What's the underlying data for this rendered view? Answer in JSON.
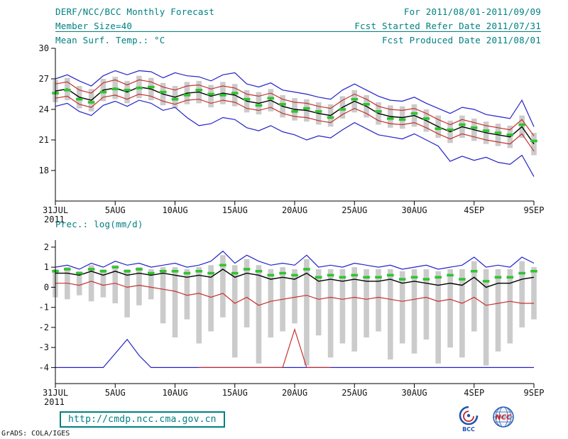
{
  "header": {
    "title": "DERF/NCC/BCC Monthly Forecast",
    "member_size": "Member Size=40",
    "temp_title": "Mean Surf. Temp.: °C",
    "for_range": "For 2011/08/01-2011/09/09",
    "refer_date": "Fcst Started Refer Date 2011/07/31",
    "produced_date": "Fcst Produced Date 2011/08/01"
  },
  "footer": {
    "url": "http://cmdp.ncc.cma.gov.cn",
    "credit": "GrADS: COLA/IGES",
    "bcc_label": "BCC",
    "ncc_label": "NCC"
  },
  "colors": {
    "teal": "#008080",
    "blue": "#2323c8",
    "red": "#c83030",
    "green": "#2fc42f",
    "gray": "#cbcbcb",
    "black": "#000000",
    "logo_blue": "#1d53b0",
    "logo_red": "#c22626"
  },
  "chart_data": [
    {
      "type": "line",
      "variant": "ensemble-spread-plume",
      "title": "Mean Surf. Temp.: °C",
      "xlabel": "",
      "ylabel": "°C",
      "ylim": [
        15,
        30
      ],
      "yticks": [
        18,
        21,
        24,
        27,
        30
      ],
      "x_tick_days": [
        0,
        5,
        10,
        15,
        20,
        25,
        30,
        35,
        40
      ],
      "x_tick_labels": [
        "31JUL",
        "5AUG",
        "10AUG",
        "15AUG",
        "20AUG",
        "25AUG",
        "30AUG",
        "4SEP",
        "9SEP"
      ],
      "x_sub_label": "2011",
      "legend": "off",
      "grid": "off",
      "series": [
        {
          "name": "ensemble-max",
          "color": "blue",
          "width": 1.2,
          "values": [
            27.0,
            27.4,
            26.8,
            26.3,
            27.3,
            27.8,
            27.4,
            27.8,
            27.7,
            27.1,
            27.6,
            27.3,
            27.2,
            26.8,
            27.4,
            27.6,
            26.5,
            26.2,
            26.6,
            25.9,
            25.7,
            25.5,
            25.2,
            25.0,
            25.9,
            26.5,
            25.9,
            25.3,
            24.9,
            24.8,
            25.2,
            24.6,
            24.1,
            23.6,
            24.2,
            24.0,
            23.5,
            23.3,
            23.1,
            24.9,
            22.3
          ]
        },
        {
          "name": "ensemble-min",
          "color": "blue",
          "width": 1.2,
          "values": [
            24.3,
            24.6,
            23.8,
            23.4,
            24.4,
            24.8,
            24.3,
            24.9,
            24.6,
            23.9,
            24.2,
            23.2,
            22.4,
            22.6,
            23.2,
            23.0,
            22.2,
            21.9,
            22.4,
            21.8,
            21.5,
            21.0,
            21.4,
            21.2,
            22.0,
            22.7,
            22.1,
            21.5,
            21.3,
            21.1,
            21.6,
            21.0,
            20.4,
            18.9,
            19.4,
            19.0,
            19.3,
            18.8,
            18.6,
            19.5,
            17.4
          ]
        },
        {
          "name": "upper-spread",
          "color": "red",
          "width": 1.2,
          "values": [
            26.5,
            26.7,
            25.9,
            25.6,
            26.6,
            26.9,
            26.4,
            26.9,
            26.7,
            26.2,
            25.9,
            26.3,
            26.4,
            26.0,
            26.3,
            26.1,
            25.5,
            25.3,
            25.6,
            25.0,
            24.7,
            24.6,
            24.3,
            24.1,
            24.9,
            25.5,
            25.0,
            24.3,
            24.0,
            23.9,
            24.1,
            23.6,
            23.0,
            22.5,
            23.0,
            22.7,
            22.4,
            22.2,
            22.0,
            23.0,
            21.4
          ]
        },
        {
          "name": "lower-spread",
          "color": "red",
          "width": 1.2,
          "values": [
            25.1,
            25.3,
            24.5,
            24.2,
            25.2,
            25.4,
            25.0,
            25.5,
            25.3,
            24.8,
            24.5,
            24.9,
            25.0,
            24.6,
            24.9,
            24.7,
            24.1,
            23.9,
            24.2,
            23.6,
            23.3,
            23.2,
            22.9,
            22.7,
            23.5,
            24.1,
            23.6,
            22.9,
            22.6,
            22.5,
            22.7,
            22.2,
            21.6,
            21.1,
            21.6,
            21.3,
            21.0,
            20.8,
            20.6,
            21.6,
            19.9
          ]
        },
        {
          "name": "ensemble-mean",
          "color": "black",
          "width": 1.4,
          "values": [
            25.8,
            26.0,
            25.2,
            24.9,
            25.9,
            26.1,
            25.7,
            26.2,
            26.0,
            25.5,
            25.2,
            25.6,
            25.7,
            25.3,
            25.6,
            25.4,
            24.8,
            24.6,
            24.9,
            24.3,
            24.0,
            23.9,
            23.6,
            23.4,
            24.2,
            24.8,
            24.3,
            23.6,
            23.3,
            23.2,
            23.4,
            22.9,
            22.3,
            21.8,
            22.3,
            22.0,
            21.7,
            21.5,
            21.3,
            22.3,
            20.6
          ]
        }
      ],
      "green_dashes": [
        25.6,
        25.9,
        25.0,
        24.7,
        25.7,
        26.0,
        25.9,
        26.1,
        26.2,
        25.7,
        25.0,
        25.4,
        25.9,
        25.5,
        25.4,
        25.6,
        25.0,
        24.4,
        25.1,
        24.5,
        23.8,
        24.1,
        23.8,
        23.2,
        24.0,
        25.0,
        24.5,
        23.8,
        23.1,
        23.0,
        23.6,
        23.1,
        22.1,
        22.0,
        22.5,
        22.2,
        21.9,
        21.7,
        21.5,
        22.5,
        20.9
      ],
      "bars": {
        "top": [
          26.9,
          27.1,
          26.3,
          26.0,
          27.0,
          27.2,
          26.8,
          27.3,
          27.1,
          26.6,
          26.3,
          26.7,
          26.8,
          26.4,
          26.7,
          26.5,
          25.9,
          25.7,
          26.0,
          25.4,
          25.1,
          25.0,
          24.7,
          24.5,
          25.3,
          25.9,
          25.4,
          24.7,
          24.4,
          24.3,
          24.5,
          24.0,
          23.4,
          22.9,
          23.4,
          23.1,
          22.8,
          22.6,
          22.4,
          23.4,
          21.7
        ],
        "bottom": [
          24.7,
          24.9,
          24.1,
          23.8,
          24.8,
          25.0,
          24.6,
          25.1,
          24.9,
          24.4,
          24.1,
          24.5,
          24.6,
          24.2,
          24.5,
          24.3,
          23.7,
          23.5,
          23.8,
          23.2,
          22.9,
          22.8,
          22.5,
          22.3,
          23.1,
          23.7,
          23.2,
          22.5,
          22.2,
          22.1,
          22.3,
          21.8,
          21.2,
          20.7,
          21.2,
          20.9,
          20.6,
          20.4,
          20.2,
          21.2,
          19.5
        ]
      }
    },
    {
      "type": "line",
      "variant": "ensemble-spread-plume",
      "title": "Prec.: log(mm/d)",
      "xlabel": "",
      "ylabel": "log(mm/d)",
      "ylim": [
        -4.8,
        2.35
      ],
      "yticks": [
        -4,
        -3,
        -2,
        -1,
        0,
        1,
        2
      ],
      "x_tick_days": [
        0,
        5,
        10,
        15,
        20,
        25,
        30,
        35,
        40
      ],
      "x_tick_labels": [
        "31JUL",
        "5AUG",
        "10AUG",
        "15AUG",
        "20AUG",
        "25AUG",
        "30AUG",
        "4SEP",
        "9SEP"
      ],
      "x_sub_label": "2011",
      "legend": "off",
      "grid": "off",
      "series": [
        {
          "name": "ensemble-max",
          "color": "blue",
          "width": 1.2,
          "values": [
            1.0,
            1.1,
            0.9,
            1.2,
            1.0,
            1.3,
            1.1,
            1.2,
            1.0,
            1.1,
            1.2,
            1.0,
            1.1,
            1.3,
            1.8,
            1.2,
            1.6,
            1.3,
            1.1,
            1.2,
            1.1,
            1.6,
            1.0,
            1.1,
            1.0,
            1.2,
            1.1,
            1.0,
            1.1,
            0.9,
            1.0,
            1.1,
            0.9,
            1.0,
            1.1,
            1.5,
            1.0,
            1.1,
            1.0,
            1.5,
            1.2
          ]
        },
        {
          "name": "ensemble-min",
          "color": "blue",
          "width": 1.2,
          "values": [
            -4,
            -4,
            -4,
            -4,
            -4,
            -3.3,
            -2.6,
            -3.4,
            -4,
            -4,
            -4,
            -4,
            -4,
            -4,
            -4,
            -4,
            -4,
            -4,
            -4,
            -4,
            -4,
            -4,
            -4,
            -4,
            -4,
            -4,
            -4,
            -4,
            -4,
            -4,
            -4,
            -4,
            -4,
            -4,
            -4,
            -4,
            -4,
            -4,
            -4,
            -4,
            -4
          ]
        },
        {
          "name": "lower-spread",
          "color": "red",
          "width": 1.2,
          "values": [
            0.2,
            0.2,
            0.1,
            0.3,
            0.1,
            0.2,
            0.0,
            0.1,
            0.0,
            -0.1,
            -0.2,
            -0.4,
            -0.3,
            -0.5,
            -0.3,
            -0.8,
            -0.5,
            -0.9,
            -0.7,
            -0.6,
            -0.5,
            -0.4,
            -0.6,
            -0.5,
            -0.6,
            -0.5,
            -0.6,
            -0.5,
            -0.6,
            -0.7,
            -0.6,
            -0.5,
            -0.7,
            -0.6,
            -0.8,
            -0.5,
            -0.9,
            -0.8,
            -0.7,
            -0.8,
            -0.8
          ]
        },
        {
          "name": "lower-spread-floor",
          "color": "red",
          "width": 1.2,
          "values": [
            null,
            null,
            null,
            null,
            null,
            null,
            null,
            null,
            null,
            null,
            null,
            null,
            -4,
            -4,
            -4,
            -4,
            -4,
            -4,
            -4,
            -4,
            -2.1,
            -4,
            -4,
            -4,
            null,
            null,
            null,
            null,
            null,
            null,
            null,
            null,
            null,
            null,
            null,
            null,
            null,
            null,
            null,
            null,
            null
          ]
        },
        {
          "name": "ensemble-mean",
          "color": "black",
          "width": 1.4,
          "values": [
            0.7,
            0.7,
            0.6,
            0.8,
            0.6,
            0.8,
            0.6,
            0.7,
            0.6,
            0.7,
            0.6,
            0.5,
            0.6,
            0.5,
            0.9,
            0.5,
            0.7,
            0.6,
            0.4,
            0.5,
            0.4,
            0.7,
            0.3,
            0.4,
            0.3,
            0.4,
            0.3,
            0.3,
            0.4,
            0.2,
            0.3,
            0.2,
            0.1,
            0.2,
            0.1,
            0.5,
            0.0,
            0.2,
            0.2,
            0.4,
            0.5
          ]
        }
      ],
      "green_dashes": [
        0.8,
        0.9,
        0.7,
        0.9,
        0.8,
        1.0,
        0.8,
        0.9,
        0.7,
        0.8,
        0.8,
        0.7,
        0.8,
        0.7,
        1.1,
        0.7,
        0.9,
        0.8,
        0.6,
        0.7,
        0.6,
        0.9,
        0.5,
        0.6,
        0.5,
        0.6,
        0.5,
        0.5,
        0.6,
        0.4,
        0.5,
        0.4,
        0.5,
        0.6,
        0.4,
        0.8,
        0.3,
        0.5,
        0.5,
        0.7,
        0.8
      ],
      "bars": {
        "top": [
          0.9,
          1.0,
          0.8,
          1.1,
          0.9,
          1.1,
          0.9,
          1.0,
          0.9,
          1.0,
          1.0,
          0.9,
          1.0,
          1.1,
          1.6,
          1.1,
          1.4,
          1.1,
          0.9,
          1.0,
          0.9,
          1.4,
          0.9,
          0.9,
          0.9,
          1.0,
          0.9,
          0.9,
          0.9,
          0.8,
          0.9,
          0.9,
          0.8,
          0.9,
          0.9,
          1.3,
          0.9,
          0.9,
          0.9,
          1.3,
          1.0
        ],
        "bottom": [
          -0.5,
          -0.6,
          -0.4,
          -0.7,
          -0.5,
          -0.8,
          -1.5,
          -0.9,
          -0.6,
          -1.8,
          -2.5,
          -1.6,
          -2.8,
          -2.2,
          -1.5,
          -3.5,
          -2.0,
          -3.8,
          -2.5,
          -2.2,
          -1.8,
          -3.9,
          -2.4,
          -3.5,
          -2.8,
          -3.2,
          -2.5,
          -2.2,
          -3.6,
          -2.8,
          -3.3,
          -2.6,
          -3.8,
          -3.0,
          -3.5,
          -2.2,
          -3.9,
          -3.2,
          -2.8,
          -2.0,
          -1.6
        ]
      }
    }
  ]
}
